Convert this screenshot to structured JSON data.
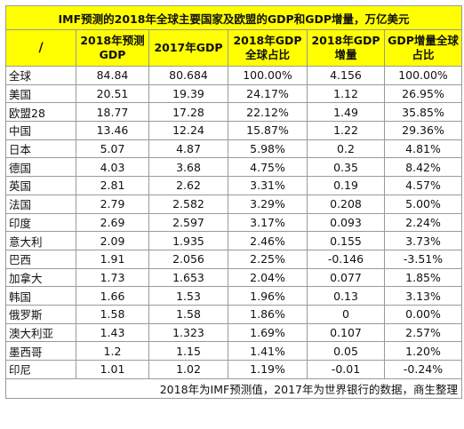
{
  "title": "IMF预测的2018年全球主要国家及欧盟的GDP和GDP增量，万亿美元",
  "headers": [
    {
      "line1": "/",
      "line2": ""
    },
    {
      "line1": "2018年预测",
      "line2": "GDP"
    },
    {
      "line1": "2017年GDP",
      "line2": ""
    },
    {
      "line1": "2018年GDP",
      "line2": "全球占比"
    },
    {
      "line1": "2018年GDP",
      "line2": "增量"
    },
    {
      "line1": "GDP增量全球",
      "line2": "占比"
    }
  ],
  "rows": [
    [
      "全球",
      "84.84",
      "80.684",
      "100.00%",
      "4.156",
      "100.00%"
    ],
    [
      "美国",
      "20.51",
      "19.39",
      "24.17%",
      "1.12",
      "26.95%"
    ],
    [
      "欧盟28",
      "18.77",
      "17.28",
      "22.12%",
      "1.49",
      "35.85%"
    ],
    [
      "中国",
      "13.46",
      "12.24",
      "15.87%",
      "1.22",
      "29.36%"
    ],
    [
      "日本",
      "5.07",
      "4.87",
      "5.98%",
      "0.2",
      "4.81%"
    ],
    [
      "德国",
      "4.03",
      "3.68",
      "4.75%",
      "0.35",
      "8.42%"
    ],
    [
      "英国",
      "2.81",
      "2.62",
      "3.31%",
      "0.19",
      "4.57%"
    ],
    [
      "法国",
      "2.79",
      "2.582",
      "3.29%",
      "0.208",
      "5.00%"
    ],
    [
      "印度",
      "2.69",
      "2.597",
      "3.17%",
      "0.093",
      "2.24%"
    ],
    [
      "意大利",
      "2.09",
      "1.935",
      "2.46%",
      "0.155",
      "3.73%"
    ],
    [
      "巴西",
      "1.91",
      "2.056",
      "2.25%",
      "-0.146",
      "-3.51%"
    ],
    [
      "加拿大",
      "1.73",
      "1.653",
      "2.04%",
      "0.077",
      "1.85%"
    ],
    [
      "韩国",
      "1.66",
      "1.53",
      "1.96%",
      "0.13",
      "3.13%"
    ],
    [
      "俄罗斯",
      "1.58",
      "1.58",
      "1.86%",
      "0",
      "0.00%"
    ],
    [
      "澳大利亚",
      "1.43",
      "1.323",
      "1.69%",
      "0.107",
      "2.57%"
    ],
    [
      "墨西哥",
      "1.2",
      "1.15",
      "1.41%",
      "0.05",
      "1.20%"
    ],
    [
      "印尼",
      "1.01",
      "1.02",
      "1.19%",
      "-0.01",
      "-0.24%"
    ]
  ],
  "note": "2018年为IMF预测值，2017年为世界银行的数据，商生整理",
  "colors": {
    "header_background": "#ffff00",
    "border": "#9a9a9a"
  }
}
